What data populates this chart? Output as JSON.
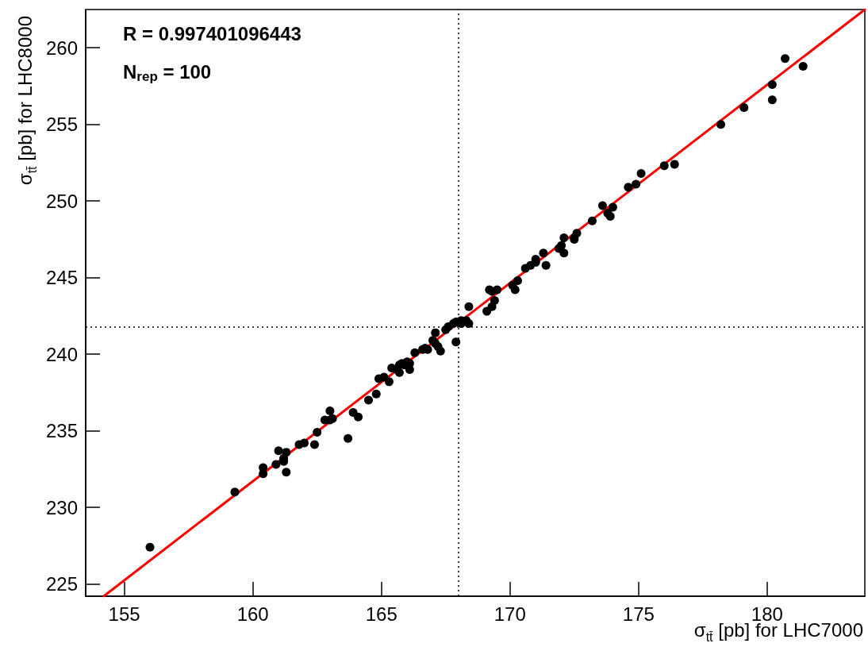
{
  "chart_data": {
    "type": "scatter",
    "xlabel": "σ$_{tt̄}$ [pb] for LHC7000",
    "ylabel": "σ$_{tt̄}$ [pb] for LHC8000",
    "annotations": [
      "R = 0.997401096443",
      "N$_{rep}$ = 100"
    ],
    "xlim": [
      153.5,
      183.8
    ],
    "xticks": [
      155,
      160,
      165,
      170,
      175,
      180
    ],
    "ylim": [
      224.2,
      262.5
    ],
    "yticks": [
      225,
      230,
      235,
      240,
      245,
      250,
      255,
      260
    ],
    "grid": false,
    "marker": "circle",
    "ref_lines": [
      {
        "axis": "x",
        "value": 168.0,
        "color": "#000000",
        "line_style": "dotted"
      },
      {
        "axis": "y",
        "value": 241.8,
        "color": "#000000",
        "line_style": "dotted"
      }
    ],
    "series": [
      {
        "color": "#000000",
        "x": [
          156.0,
          159.3,
          160.4,
          160.4,
          160.9,
          161.0,
          161.2,
          161.2,
          161.3,
          161.3,
          161.8,
          162.0,
          162.4,
          162.5,
          162.8,
          163.0,
          163.0,
          163.1,
          163.7,
          163.9,
          164.1,
          164.5,
          164.8,
          164.9,
          165.1,
          165.3,
          165.4,
          165.6,
          165.7,
          165.8,
          165.9,
          166.0,
          165.7,
          166.1,
          166.3,
          166.1,
          166.6,
          166.7,
          166.8,
          167.0,
          167.1,
          167.1,
          167.2,
          167.3,
          167.5,
          167.6,
          167.8,
          167.9,
          167.9,
          168.1,
          168.1,
          168.3,
          168.4,
          168.4,
          169.1,
          169.2,
          169.3,
          169.3,
          169.4,
          169.5,
          170.1,
          170.2,
          170.3,
          170.6,
          170.8,
          171.0,
          171.0,
          171.3,
          171.4,
          171.9,
          172.0,
          172.1,
          172.1,
          172.5,
          172.6,
          172.5,
          173.2,
          173.6,
          173.8,
          174.0,
          173.9,
          174.6,
          174.9,
          175.1,
          176.0,
          176.4,
          178.2,
          179.1,
          180.2,
          180.2,
          180.7,
          181.4
        ],
        "values": [
          227.4,
          231.0,
          232.6,
          232.2,
          232.8,
          233.7,
          233.0,
          233.2,
          233.6,
          232.3,
          234.1,
          234.2,
          234.1,
          234.9,
          235.7,
          236.3,
          235.7,
          235.8,
          234.5,
          236.2,
          235.9,
          237.0,
          237.4,
          238.4,
          238.5,
          238.2,
          239.1,
          239.0,
          239.3,
          239.4,
          239.3,
          239.5,
          238.8,
          239.0,
          240.1,
          239.4,
          240.3,
          240.4,
          240.3,
          240.9,
          241.4,
          240.7,
          240.5,
          240.2,
          241.6,
          241.8,
          242.0,
          242.1,
          240.8,
          242.0,
          242.2,
          242.2,
          242.0,
          243.1,
          242.8,
          244.2,
          244.1,
          243.1,
          243.5,
          244.2,
          244.5,
          244.2,
          244.8,
          245.6,
          245.8,
          246.0,
          246.2,
          246.6,
          245.8,
          246.9,
          247.1,
          246.6,
          247.6,
          247.6,
          247.9,
          247.5,
          248.7,
          249.7,
          249.2,
          249.6,
          249.0,
          250.9,
          251.1,
          251.8,
          252.3,
          252.4,
          255.0,
          256.1,
          257.6,
          256.6,
          259.3,
          258.8
        ]
      },
      {
        "type": "line",
        "color": "#ff0000",
        "marker": "none",
        "x": [
          154.2,
          183.8
        ],
        "values": [
          224.2,
          262.5
        ]
      }
    ]
  }
}
